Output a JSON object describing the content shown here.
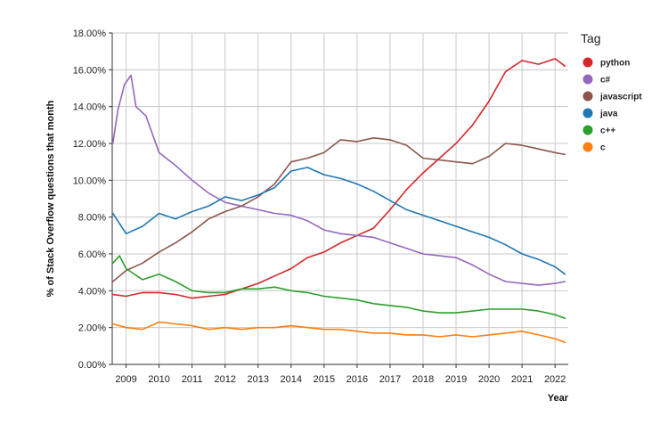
{
  "chart_data": {
    "type": "line",
    "title": "",
    "xlabel": "Year",
    "ylabel": "% of Stack Overflow questions that month",
    "xlim": [
      2008.58,
      2022.4
    ],
    "ylim": [
      0,
      18
    ],
    "x_ticks": [
      2009,
      2010,
      2011,
      2012,
      2013,
      2014,
      2015,
      2016,
      2017,
      2018,
      2019,
      2020,
      2021,
      2022
    ],
    "y_ticks": [
      "0.00%",
      "2.00%",
      "4.00%",
      "6.00%",
      "8.00%",
      "10.00%",
      "12.00%",
      "14.00%",
      "16.00%",
      "18.00%"
    ],
    "grid": true,
    "legend": {
      "title": "Tag",
      "placement": "right"
    },
    "series": [
      {
        "name": "python",
        "color": "#d62728",
        "x": [
          2008.6,
          2009.0,
          2009.5,
          2010.0,
          2010.5,
          2011.0,
          2011.5,
          2012.0,
          2012.5,
          2013.0,
          2013.5,
          2014.0,
          2014.5,
          2015.0,
          2015.5,
          2016.0,
          2016.5,
          2017.0,
          2017.5,
          2018.0,
          2018.5,
          2019.0,
          2019.5,
          2020.0,
          2020.5,
          2021.0,
          2021.5,
          2022.0,
          2022.3
        ],
        "values": [
          3.8,
          3.7,
          3.9,
          3.9,
          3.8,
          3.6,
          3.7,
          3.8,
          4.1,
          4.4,
          4.8,
          5.2,
          5.8,
          6.1,
          6.6,
          7.0,
          7.4,
          8.4,
          9.5,
          10.4,
          11.2,
          12.0,
          13.0,
          14.3,
          15.9,
          16.5,
          16.3,
          16.6,
          16.2
        ]
      },
      {
        "name": "c#",
        "color": "#9467bd",
        "x": [
          2008.6,
          2008.75,
          2008.95,
          2009.15,
          2009.3,
          2009.6,
          2010.0,
          2010.5,
          2011.0,
          2011.5,
          2012.0,
          2012.5,
          2013.0,
          2013.5,
          2014.0,
          2014.5,
          2015.0,
          2015.5,
          2016.0,
          2016.5,
          2017.0,
          2017.5,
          2018.0,
          2018.5,
          2019.0,
          2019.5,
          2020.0,
          2020.5,
          2021.0,
          2021.5,
          2022.0,
          2022.3
        ],
        "values": [
          12.0,
          13.8,
          15.2,
          15.7,
          14.0,
          13.5,
          11.5,
          10.8,
          10.0,
          9.3,
          8.8,
          8.6,
          8.4,
          8.2,
          8.1,
          7.8,
          7.3,
          7.1,
          7.0,
          6.9,
          6.6,
          6.3,
          6.0,
          5.9,
          5.8,
          5.4,
          4.9,
          4.5,
          4.4,
          4.3,
          4.4,
          4.5
        ]
      },
      {
        "name": "javascript",
        "color": "#8c564b",
        "x": [
          2008.6,
          2009.0,
          2009.5,
          2010.0,
          2010.5,
          2011.0,
          2011.5,
          2012.0,
          2012.5,
          2013.0,
          2013.5,
          2014.0,
          2014.5,
          2015.0,
          2015.5,
          2016.0,
          2016.5,
          2017.0,
          2017.5,
          2018.0,
          2018.5,
          2019.0,
          2019.5,
          2020.0,
          2020.5,
          2021.0,
          2021.5,
          2022.0,
          2022.3
        ],
        "values": [
          4.5,
          5.1,
          5.5,
          6.1,
          6.6,
          7.2,
          7.9,
          8.3,
          8.6,
          9.1,
          9.8,
          11.0,
          11.2,
          11.5,
          12.2,
          12.1,
          12.3,
          12.2,
          11.9,
          11.2,
          11.1,
          11.0,
          10.9,
          11.3,
          12.0,
          11.9,
          11.7,
          11.5,
          11.4
        ]
      },
      {
        "name": "java",
        "color": "#1f77b4",
        "x": [
          2008.6,
          2009.0,
          2009.5,
          2010.0,
          2010.5,
          2011.0,
          2011.5,
          2012.0,
          2012.5,
          2013.0,
          2013.5,
          2014.0,
          2014.5,
          2015.0,
          2015.5,
          2016.0,
          2016.5,
          2017.0,
          2017.5,
          2018.0,
          2018.5,
          2019.0,
          2019.5,
          2020.0,
          2020.5,
          2021.0,
          2021.5,
          2022.0,
          2022.3
        ],
        "values": [
          8.2,
          7.1,
          7.5,
          8.2,
          7.9,
          8.3,
          8.6,
          9.1,
          8.9,
          9.2,
          9.6,
          10.5,
          10.7,
          10.3,
          10.1,
          9.8,
          9.4,
          8.9,
          8.4,
          8.1,
          7.8,
          7.5,
          7.2,
          6.9,
          6.5,
          6.0,
          5.7,
          5.3,
          4.9
        ]
      },
      {
        "name": "c++",
        "color": "#2ca02c",
        "x": [
          2008.6,
          2008.8,
          2009.0,
          2009.5,
          2010.0,
          2010.5,
          2011.0,
          2011.5,
          2012.0,
          2012.5,
          2013.0,
          2013.5,
          2014.0,
          2014.5,
          2015.0,
          2015.5,
          2016.0,
          2016.5,
          2017.0,
          2017.5,
          2018.0,
          2018.5,
          2019.0,
          2019.5,
          2020.0,
          2020.5,
          2021.0,
          2021.5,
          2022.0,
          2022.3
        ],
        "values": [
          5.5,
          5.9,
          5.2,
          4.6,
          4.9,
          4.5,
          4.0,
          3.9,
          3.9,
          4.1,
          4.1,
          4.2,
          4.0,
          3.9,
          3.7,
          3.6,
          3.5,
          3.3,
          3.2,
          3.1,
          2.9,
          2.8,
          2.8,
          2.9,
          3.0,
          3.0,
          3.0,
          2.9,
          2.7,
          2.5
        ]
      },
      {
        "name": "c",
        "color": "#ff7f0e",
        "x": [
          2008.6,
          2009.0,
          2009.5,
          2010.0,
          2010.5,
          2011.0,
          2011.5,
          2012.0,
          2012.5,
          2013.0,
          2013.5,
          2014.0,
          2014.5,
          2015.0,
          2015.5,
          2016.0,
          2016.5,
          2017.0,
          2017.5,
          2018.0,
          2018.5,
          2019.0,
          2019.5,
          2020.0,
          2020.5,
          2021.0,
          2021.5,
          2022.0,
          2022.3
        ],
        "values": [
          2.2,
          2.0,
          1.9,
          2.3,
          2.2,
          2.1,
          1.9,
          2.0,
          1.9,
          2.0,
          2.0,
          2.1,
          2.0,
          1.9,
          1.9,
          1.8,
          1.7,
          1.7,
          1.6,
          1.6,
          1.5,
          1.6,
          1.5,
          1.6,
          1.7,
          1.8,
          1.6,
          1.4,
          1.2
        ]
      }
    ]
  }
}
